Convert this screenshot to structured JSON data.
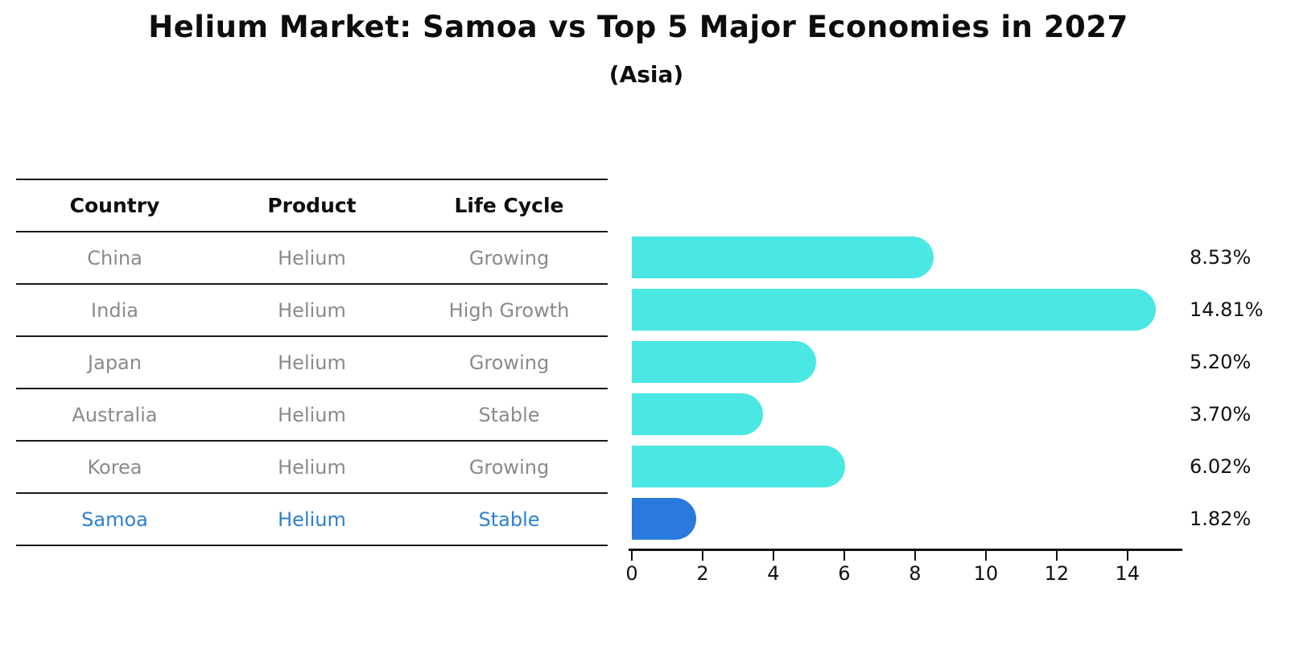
{
  "chart_data": {
    "type": "bar",
    "orientation": "horizontal",
    "title": "Helium Market: Samoa vs Top 5 Major Economies in 2027",
    "subtitle": "(Asia)",
    "categories": [
      "China",
      "India",
      "Japan",
      "Australia",
      "Korea",
      "Samoa"
    ],
    "values": [
      8.53,
      14.81,
      5.2,
      3.7,
      6.02,
      1.82
    ],
    "value_labels": [
      "8.53%",
      "14.81%",
      "5.20%",
      "3.70%",
      "6.02%",
      "1.82%"
    ],
    "x_ticks": [
      0,
      2,
      4,
      6,
      8,
      10,
      12,
      14
    ],
    "xlim": [
      0,
      15.55
    ],
    "xlabel": "",
    "ylabel": "",
    "grid": false,
    "legend": false,
    "bar_color": "#4be7e3",
    "highlight_index": 5,
    "highlight_color": "#2a79dd",
    "highlight_text_color": "#2e7fd0"
  },
  "table": {
    "headers": [
      "Country",
      "Product",
      "Life Cycle"
    ],
    "rows": [
      {
        "country": "China",
        "product": "Helium",
        "life_cycle": "Growing",
        "highlight": false
      },
      {
        "country": "India",
        "product": "Helium",
        "life_cycle": "High Growth",
        "highlight": false
      },
      {
        "country": "Japan",
        "product": "Helium",
        "life_cycle": "Growing",
        "highlight": false
      },
      {
        "country": "Australia",
        "product": "Helium",
        "life_cycle": "Stable",
        "highlight": false
      },
      {
        "country": "Korea",
        "product": "Helium",
        "life_cycle": "Growing",
        "highlight": false
      },
      {
        "country": "Samoa",
        "product": "Helium",
        "life_cycle": "Stable",
        "highlight": true
      }
    ]
  },
  "colors": {
    "text": "#0d0d0d",
    "muted_text": "#8a8a8a",
    "table_line": "#1a1a1a",
    "axis": "#111111"
  }
}
